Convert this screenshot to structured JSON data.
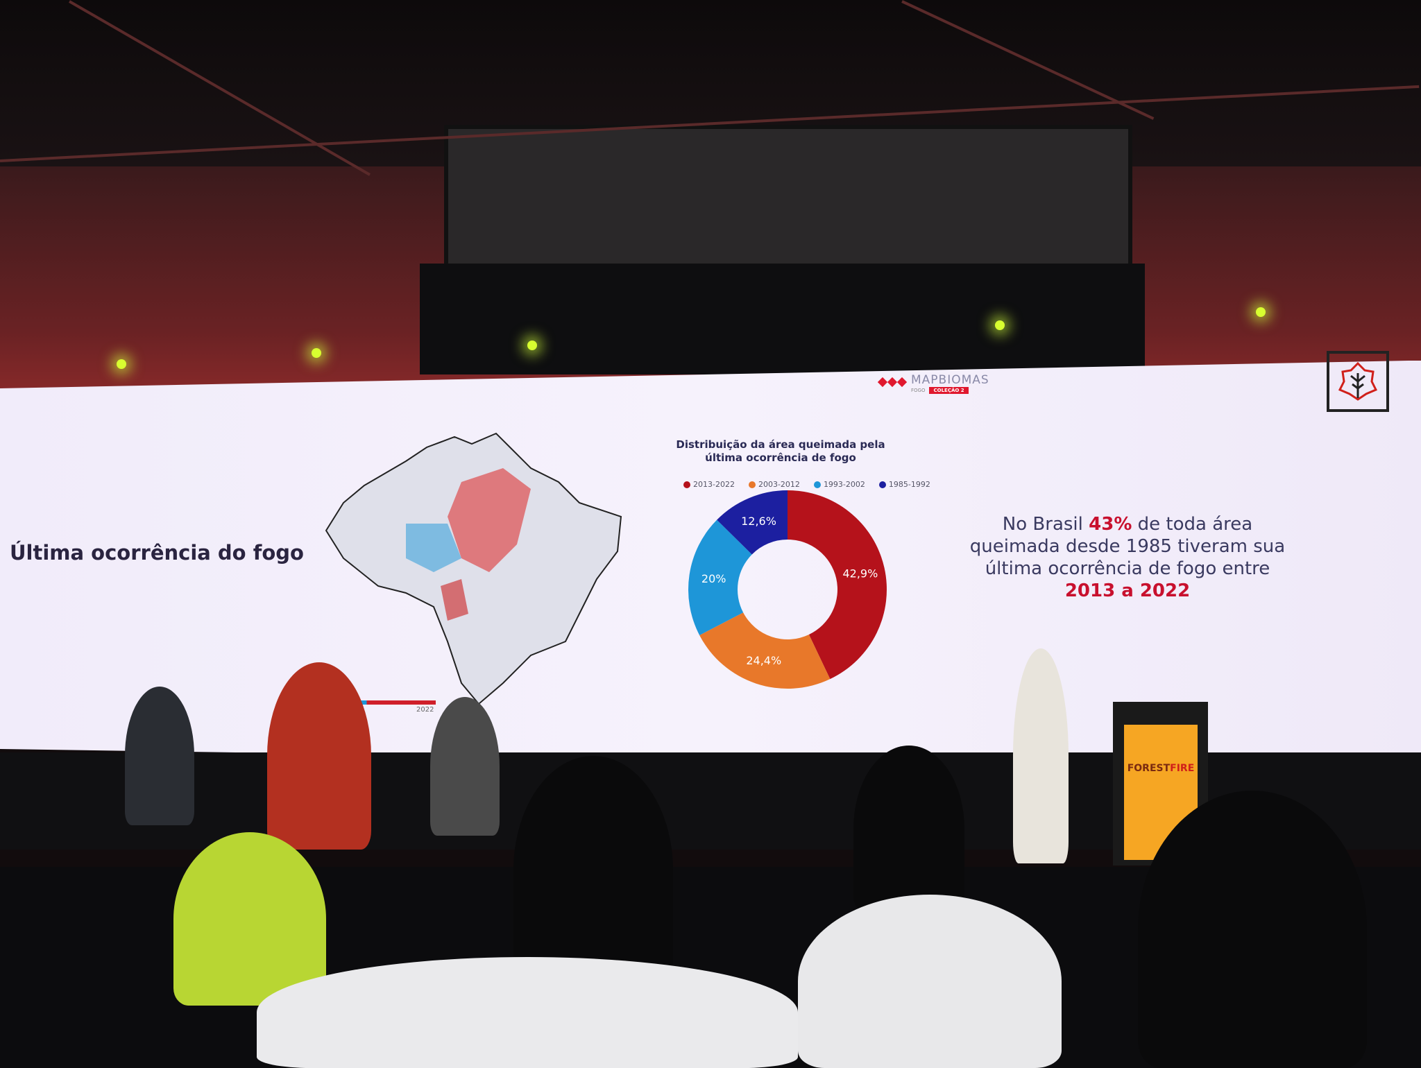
{
  "slide": {
    "title": "Última ocorrência do fogo",
    "timeline_year": "2022",
    "logo": {
      "name": "MAPBIOMAS",
      "sub": "FOGO",
      "tag": "COLEÇÃO 2"
    },
    "stat": {
      "line1_pre": "No Brasil ",
      "line1_highlight": "43%",
      "line1_post": " de toda área",
      "line2": "queimada desde 1985 tiveram sua",
      "line3": "última ocorrência de fogo entre",
      "line4_highlight": "2013 a 2022"
    }
  },
  "podium": {
    "brand_a": "FOREST",
    "brand_b": "FIRE"
  },
  "chart_data": {
    "type": "pie",
    "donut": true,
    "title": "Distribuição da área queimada pela última ocorrência de fogo",
    "legend_position": "top",
    "categories": [
      "2013-2022",
      "2003-2012",
      "1993-2002",
      "1985-1992"
    ],
    "values": [
      42.9,
      24.4,
      20,
      12.6
    ],
    "labels": [
      "42,9%",
      "24,4%",
      "20%",
      "12,6%"
    ],
    "colors": [
      "#b5121b",
      "#e8782a",
      "#1e96d8",
      "#1c1fa0"
    ]
  }
}
